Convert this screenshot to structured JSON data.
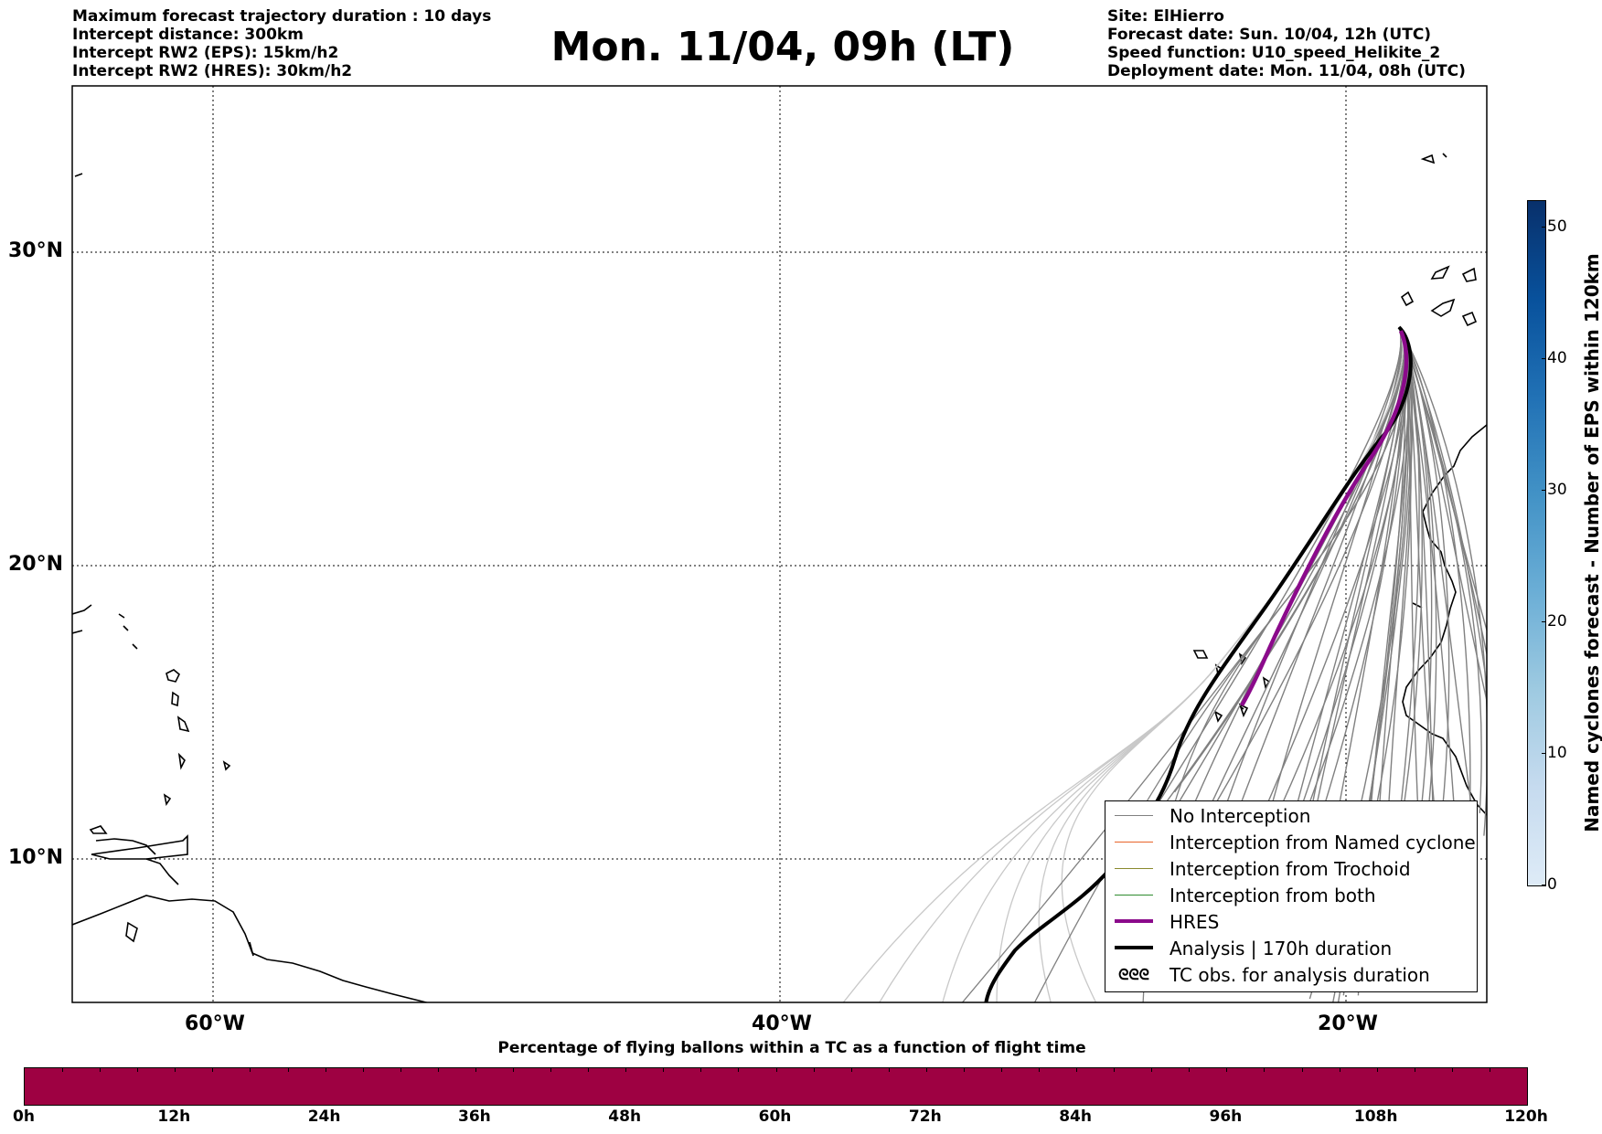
{
  "header": {
    "info_left": [
      "Maximum forecast trajectory duration : 10 days",
      "Intercept distance: 300km",
      "Intercept RW2 (EPS):  15km/h2",
      "Intercept RW2 (HRES): 30km/h2"
    ],
    "title": "Mon. 11/04, 09h (LT)",
    "info_right": [
      "Site: ElHierro",
      "Forecast date: Sun. 10/04, 12h (UTC)",
      "Speed function: U10_speed_Helikite_2",
      "Deployment date: Mon. 11/04, 08h (UTC)"
    ]
  },
  "map": {
    "lat_labels": [
      "30°N",
      "20°N",
      "10°N"
    ],
    "lon_labels": [
      "60°W",
      "40°W",
      "20°W"
    ],
    "colors": {
      "no_interception": "#808080",
      "named_cyclone": "#e8642a",
      "trochoid": "#8a8a2e",
      "both": "#2e8b2e",
      "hres": "#8b0a8b",
      "analysis": "#000000"
    }
  },
  "legend": {
    "items": [
      {
        "label": "No Interception",
        "symbol": "line-gray"
      },
      {
        "label": "Interception from Named cyclone",
        "symbol": "line-orange"
      },
      {
        "label": "Interception from Trochoid",
        "symbol": "line-olive"
      },
      {
        "label": "Interception from both",
        "symbol": "line-green"
      },
      {
        "label": "HRES",
        "symbol": "line-purple-thick"
      },
      {
        "label": "Analysis | 170h duration",
        "symbol": "line-black-thick"
      },
      {
        "label": "TC obs. for analysis duration",
        "symbol": "tc-symbols",
        "glyph": "ᘓᘓᘓ"
      }
    ]
  },
  "colorbar": {
    "label": "Named cyclones forecast - Number of EPS within 120km",
    "ticks": [
      "0",
      "10",
      "20",
      "30",
      "40",
      "50"
    ],
    "range": [
      0,
      52
    ]
  },
  "percentage_bar": {
    "title": "Percentage of flying ballons within a TC as a function of flight time",
    "ticks": [
      "0h",
      "12h",
      "24h",
      "36h",
      "48h",
      "60h",
      "72h",
      "84h",
      "96h",
      "108h",
      "120h"
    ],
    "color": "#9e0142"
  }
}
